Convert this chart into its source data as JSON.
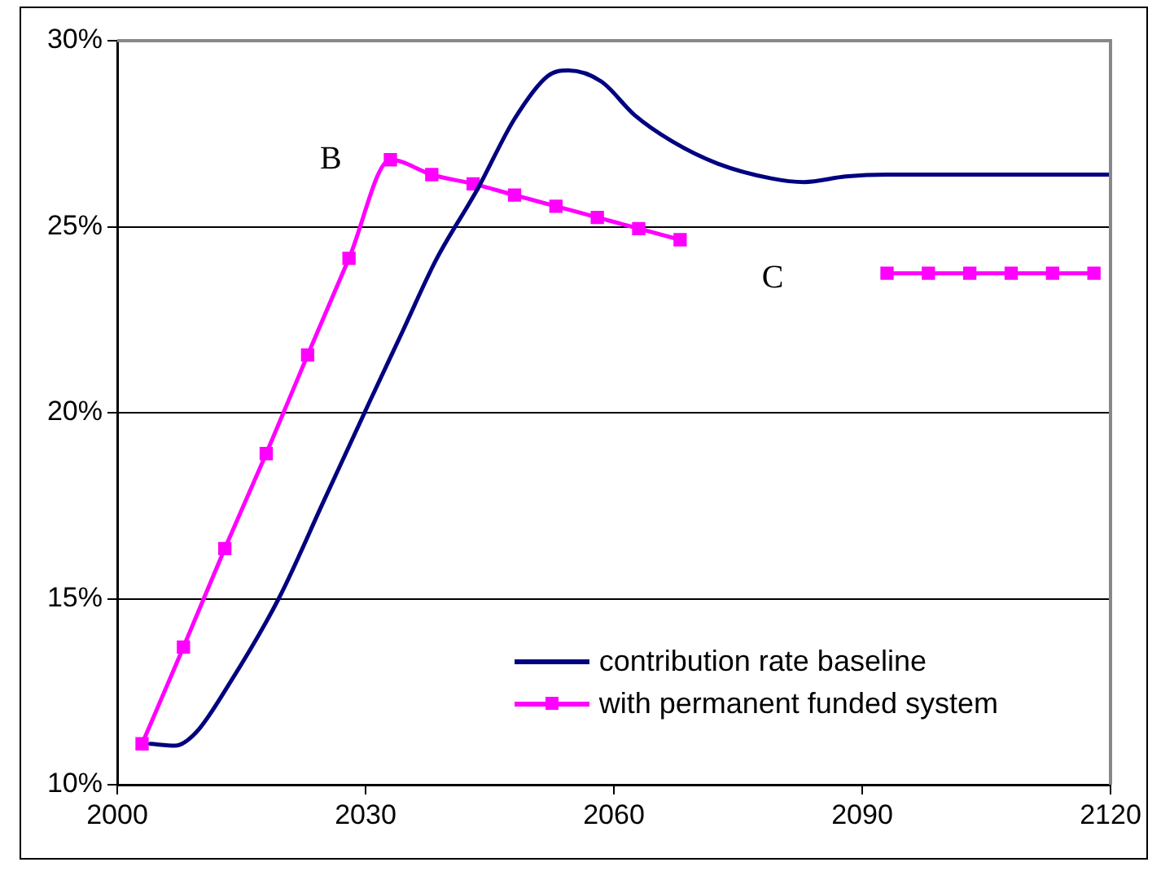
{
  "chart_data": {
    "type": "line",
    "xlim": [
      2000,
      2120
    ],
    "xticks": [
      2000,
      2030,
      2060,
      2090,
      2120
    ],
    "ylim": [
      10,
      30
    ],
    "yticks": [
      {
        "value": 10,
        "label": "10%"
      },
      {
        "value": 15,
        "label": "15%"
      },
      {
        "value": 20,
        "label": "20%"
      },
      {
        "value": 25,
        "label": "25%"
      },
      {
        "value": 30,
        "label": "30%"
      }
    ],
    "grid": "y",
    "legend": "bottom right",
    "line_style": "solid",
    "series": [
      {
        "name": "contribution rate baseline",
        "color": "#000080",
        "marker": "none",
        "x": [
          2004,
          2007,
          2009.5,
          2013.5,
          2019.5,
          2025,
          2030.5,
          2034.5,
          2038.5,
          2043.5,
          2048,
          2052,
          2054.5,
          2058.5,
          2062.5,
          2067,
          2072.5,
          2079,
          2083,
          2088,
          2093,
          2120
        ],
        "values": [
          11.1,
          11.05,
          11.4,
          12.7,
          15.0,
          17.65,
          20.3,
          22.2,
          24.1,
          26.0,
          27.9,
          29.05,
          29.2,
          28.9,
          28.0,
          27.3,
          26.7,
          26.3,
          26.2,
          26.35,
          26.4,
          26.4
        ]
      },
      {
        "name": "with permanent funded system",
        "color": "#ff00ff",
        "marker": "square",
        "x": [
          2003,
          2008,
          2013,
          2018,
          2023,
          2028,
          2033,
          2038,
          2043,
          2048,
          2053,
          2058,
          2063,
          2068,
          2073,
          2078,
          2083,
          2088,
          2093,
          2098,
          2103,
          2108,
          2113,
          2118
        ],
        "values": [
          11.1,
          13.7,
          16.35,
          18.9,
          21.55,
          24.15,
          26.8,
          26.4,
          26.15,
          25.85,
          25.55,
          25.25,
          24.95,
          24.65,
          null,
          null,
          null,
          null,
          23.75,
          23.75,
          23.75,
          23.75,
          23.75,
          23.75
        ]
      }
    ],
    "annotations": [
      "B",
      "C"
    ]
  }
}
